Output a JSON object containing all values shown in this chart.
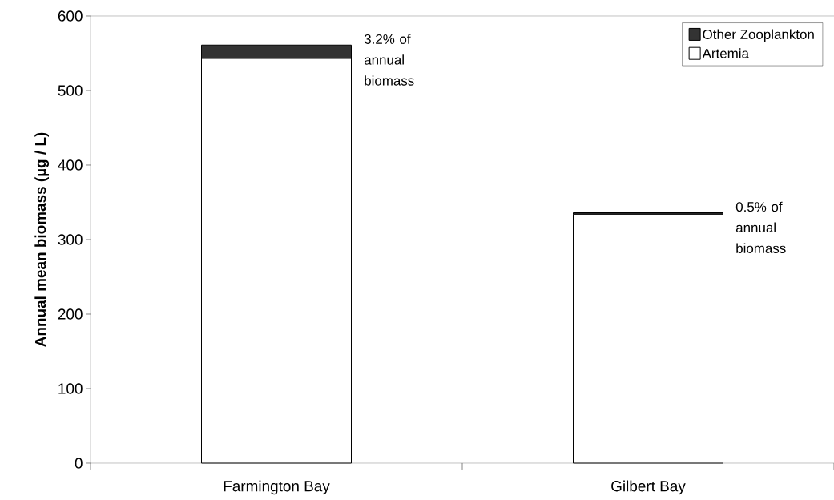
{
  "chart_data": {
    "type": "bar",
    "stacked": true,
    "ylabel": "Annual mean biomass (µg / L)",
    "categories": [
      "Farmington Bay",
      "Gilbert Bay"
    ],
    "series": [
      {
        "name": "Artemia",
        "color": "#ffffff",
        "values": [
          543,
          334
        ]
      },
      {
        "name": "Other Zooplankton",
        "color": "#333333",
        "values": [
          18,
          2
        ]
      }
    ],
    "ylim": [
      0,
      600
    ],
    "yticks": [
      0,
      100,
      200,
      300,
      400,
      500,
      600
    ],
    "grid": false,
    "legend": "top right",
    "annotations": [
      "3.2% of annual biomass",
      "0.5% of annual biomass"
    ]
  }
}
